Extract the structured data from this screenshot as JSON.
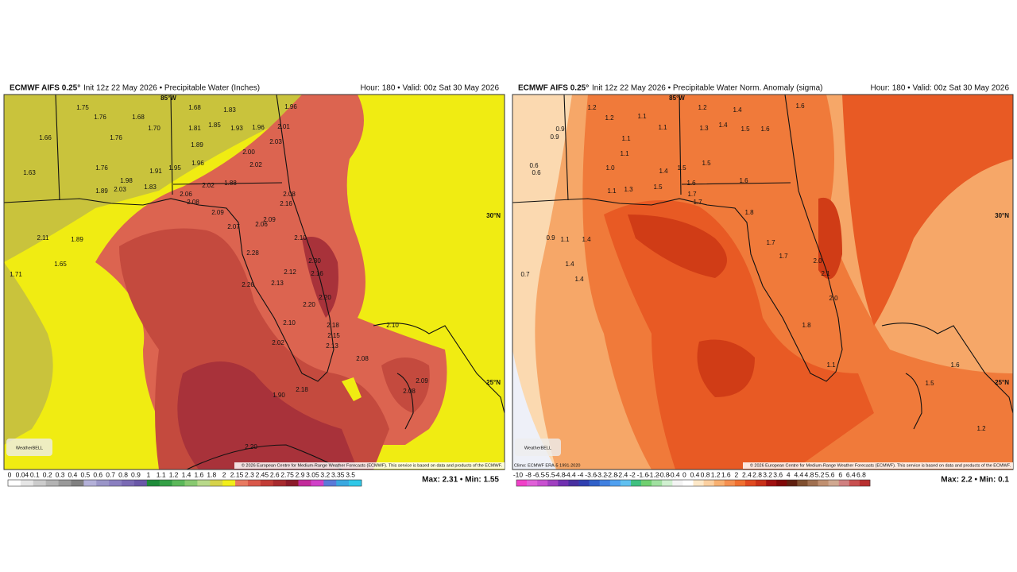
{
  "panels": [
    {
      "title": "ECMWF AIFS 0.25°",
      "subtitle": "Init 12z 22 May 2026 • Precipitable Water (Inches)",
      "valid": "Hour: 180 • Valid: 00z Sat 30 May 2026",
      "grid_labels": [
        "85°W",
        "30°N",
        "25°N"
      ],
      "stations": [
        "1.75",
        "1.76",
        "1.68",
        "1.68",
        "1.83",
        "1.96",
        "1.66",
        "1.70",
        "1.81",
        "1.85",
        "1.93",
        "1.96",
        "2.01",
        "1.76",
        "1.89",
        "2.03",
        "2.00",
        "1.63",
        "1.76",
        "1.91",
        "1.95",
        "1.96",
        "2.02",
        "2.02",
        "1.88",
        "1.98",
        "1.83",
        "1.89",
        "2.03",
        "2.06",
        "2.08",
        "2.09",
        "2.07",
        "2.06",
        "2.09",
        "2.08",
        "2.16",
        "2.10",
        "2.28",
        "2.30",
        "2.16",
        "2.12",
        "2.13",
        "2.26",
        "2.20",
        "2.20",
        "2.18",
        "2.15",
        "2.13",
        "2.10",
        "2.02",
        "2.08",
        "2.10",
        "2.08",
        "2.09",
        "2.18",
        "1.90",
        "1.89",
        "1.65",
        "1.71",
        "2.11",
        "2.20"
      ],
      "logo": "WeatherBELL",
      "copyright": "© 2026 European Centre for Medium-Range Weather Forecasts (ECMWF). This service is based on data and products of the ECMWF.",
      "maxmin": "Max: 2.31 • Min: 1.55",
      "colorbar": {
        "labels": [
          "0",
          "0.04",
          "0.1",
          "0.2",
          "0.3",
          "0.4",
          "0.5",
          "0.6",
          "0.7",
          "0.8",
          "0.9",
          "1",
          "1.1",
          "1.2",
          "1.4",
          "1.6",
          "1.8",
          "2",
          "2.15",
          "2.3",
          "2.45",
          "2.6",
          "2.75",
          "2.9",
          "3.05",
          "3.2",
          "3.35",
          "3.5"
        ],
        "colors": [
          "#ffffff",
          "#e6e6e6",
          "#cccccc",
          "#b3b3b3",
          "#999999",
          "#808080",
          "#b3b0d8",
          "#9a95c8",
          "#8a7fc0",
          "#7a6ab4",
          "#6a58a8",
          "#1f8c3a",
          "#34a046",
          "#5bb85a",
          "#88c970",
          "#b8d98a",
          "#d6d24a",
          "#f2ee1a",
          "#e87a60",
          "#d9584a",
          "#c23c36",
          "#a82a2e",
          "#8c1a2a",
          "#c22a9a",
          "#d040c8",
          "#5a7ad8",
          "#3aa8e0",
          "#30c8e8"
        ]
      }
    },
    {
      "title": "ECMWF AIFS 0.25°",
      "subtitle": "Init 12z 22 May 2026 • Precipitable Water Norm. Anomaly (sigma)",
      "valid": "Hour: 180 • Valid: 00z Sat 30 May 2026",
      "grid_labels": [
        "85°W",
        "30°N",
        "25°N"
      ],
      "stations": [
        "1.2",
        "1.2",
        "1.1",
        "1.2",
        "1.4",
        "1.6",
        "0.9",
        "0.9",
        "1.1",
        "1.3",
        "1.4",
        "1.5",
        "1.6",
        "1.1",
        "1.1",
        "1.0",
        "0.6",
        "0.6",
        "1.4",
        "1.5",
        "1.5",
        "1.6",
        "1.1",
        "1.3",
        "1.5",
        "1.6",
        "1.7",
        "1.7",
        "1.8",
        "1.7",
        "0.9",
        "1.1",
        "1.4",
        "1.4",
        "1.4",
        "0.7",
        "1.7",
        "2.0",
        "2.1",
        "1.8",
        "2.0",
        "1.5",
        "1.1",
        "1.6",
        "1.2"
      ],
      "logo": "WeatherBELL",
      "copyright": "© 2026 European Centre for Medium-Range Weather Forecasts (ECMWF). This service is based on data and products of the ECMWF.",
      "climo": "Climo: ECMWF ERA-5 1991-2020",
      "maxmin": "Max: 2.2 • Min: 0.1",
      "colorbar": {
        "labels": [
          "-10",
          "-8",
          "-6.5",
          "-5.5",
          "-4.8",
          "-4.4",
          "-4",
          "-3.6",
          "-3.2",
          "-2.8",
          "-2.4",
          "-2",
          "-1.6",
          "-1.2",
          "-0.8",
          "-0.4",
          "0",
          "0.4",
          "0.8",
          "1.2",
          "1.6",
          "2",
          "2.4",
          "2.8",
          "3.2",
          "3.6",
          "4",
          "4.4",
          "4.8",
          "5.2",
          "5.6",
          "6",
          "6.4",
          "6.8"
        ],
        "colors": [
          "#f040c8",
          "#e060d8",
          "#c850d0",
          "#a040c0",
          "#7030b0",
          "#4830a0",
          "#3040b0",
          "#3060c8",
          "#4080e0",
          "#50a0f0",
          "#60c0f0",
          "#40c080",
          "#70d070",
          "#a0e0a0",
          "#d0f0d0",
          "#f4f4f4",
          "#ffffff",
          "#fde8c8",
          "#fbd0a0",
          "#f8b070",
          "#f59050",
          "#f07030",
          "#e04a20",
          "#c83018",
          "#a01010",
          "#800808",
          "#602010",
          "#805030",
          "#a07050",
          "#c09070",
          "#d0a890",
          "#d08080",
          "#c85050",
          "#b83030"
        ]
      }
    }
  ]
}
